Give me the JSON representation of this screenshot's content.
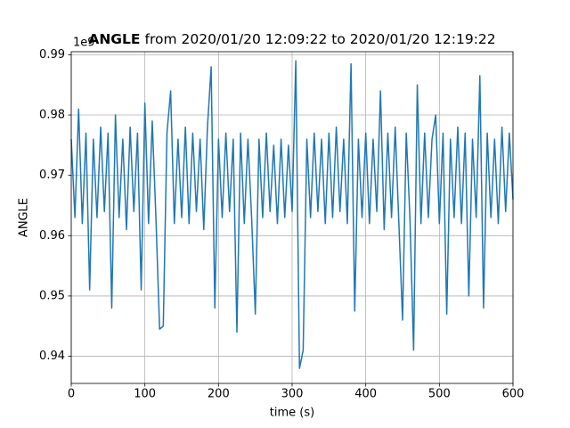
{
  "chart_data": {
    "type": "line",
    "title": [
      "ANGLE",
      "from 2020/01/20 12:09:22 to 2020/01/20 12:19:22"
    ],
    "xlabel": "time (s)",
    "ylabel": "ANGLE",
    "offset_label": "1e9",
    "xlim": [
      0,
      600
    ],
    "ylim": [
      0.9355,
      0.9905
    ],
    "xticks": [
      0,
      100,
      200,
      300,
      400,
      500,
      600
    ],
    "yticks": [
      0.94,
      0.95,
      0.96,
      0.97,
      0.98,
      0.99
    ],
    "grid": true,
    "x": [
      0,
      5,
      10,
      15,
      20,
      25,
      30,
      35,
      40,
      45,
      50,
      55,
      60,
      65,
      70,
      75,
      80,
      85,
      90,
      95,
      100,
      105,
      110,
      115,
      120,
      125,
      130,
      135,
      140,
      145,
      150,
      155,
      160,
      165,
      170,
      175,
      180,
      185,
      190,
      195,
      200,
      205,
      210,
      215,
      220,
      225,
      230,
      235,
      240,
      245,
      250,
      255,
      260,
      265,
      270,
      275,
      280,
      285,
      290,
      295,
      300,
      305,
      310,
      315,
      320,
      325,
      330,
      335,
      340,
      345,
      350,
      355,
      360,
      365,
      370,
      375,
      380,
      385,
      390,
      395,
      400,
      405,
      410,
      415,
      420,
      425,
      430,
      435,
      440,
      445,
      450,
      455,
      460,
      465,
      470,
      475,
      480,
      485,
      490,
      495,
      500,
      505,
      510,
      515,
      520,
      525,
      530,
      535,
      540,
      545,
      550,
      555,
      560,
      565,
      570,
      575,
      580,
      585,
      590,
      595,
      600
    ],
    "series": [
      {
        "name": "ANGLE",
        "color": "#1f77b4",
        "values": [
          0.976,
          0.963,
          0.981,
          0.962,
          0.977,
          0.951,
          0.976,
          0.963,
          0.978,
          0.964,
          0.977,
          0.948,
          0.98,
          0.963,
          0.976,
          0.961,
          0.978,
          0.964,
          0.977,
          0.951,
          0.982,
          0.962,
          0.979,
          0.963,
          0.9445,
          0.945,
          0.977,
          0.984,
          0.962,
          0.976,
          0.963,
          0.978,
          0.962,
          0.977,
          0.964,
          0.976,
          0.961,
          0.978,
          0.988,
          0.948,
          0.976,
          0.963,
          0.977,
          0.964,
          0.976,
          0.944,
          0.977,
          0.962,
          0.976,
          0.963,
          0.947,
          0.976,
          0.963,
          0.977,
          0.964,
          0.975,
          0.962,
          0.976,
          0.963,
          0.975,
          0.964,
          0.989,
          0.938,
          0.941,
          0.976,
          0.963,
          0.977,
          0.964,
          0.976,
          0.962,
          0.977,
          0.963,
          0.978,
          0.964,
          0.976,
          0.962,
          0.9885,
          0.9475,
          0.976,
          0.963,
          0.977,
          0.962,
          0.976,
          0.964,
          0.984,
          0.961,
          0.977,
          0.963,
          0.978,
          0.962,
          0.946,
          0.977,
          0.963,
          0.941,
          0.985,
          0.962,
          0.977,
          0.963,
          0.976,
          0.98,
          0.962,
          0.977,
          0.947,
          0.976,
          0.963,
          0.978,
          0.962,
          0.977,
          0.95,
          0.976,
          0.963,
          0.9865,
          0.948,
          0.977,
          0.963,
          0.976,
          0.962,
          0.978,
          0.964,
          0.977,
          0.966
        ]
      }
    ]
  }
}
